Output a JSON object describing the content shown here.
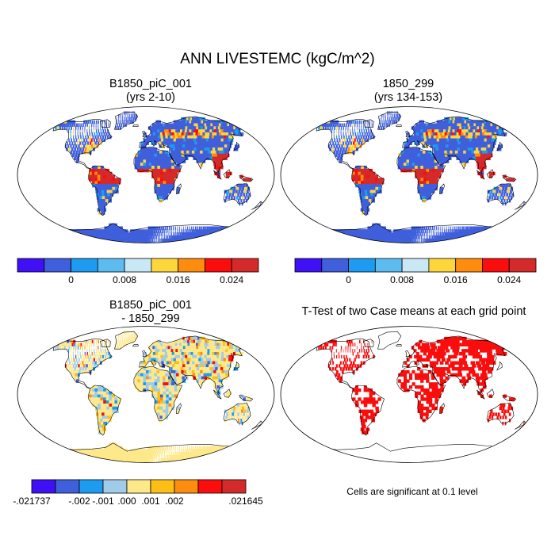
{
  "figure": {
    "title": "ANN LIVESTEMC (kgC/m^2)"
  },
  "panels": [
    {
      "id": "case1",
      "title_line1": "B1850_piC_001",
      "title_line2": "(yrs 2-10)",
      "kind": "field"
    },
    {
      "id": "case2",
      "title_line1": "1850_299",
      "title_line2": "(yrs 134-153)",
      "kind": "field"
    },
    {
      "id": "diff",
      "title_line1": "B1850_piC_001",
      "title_line2": "- 1850_299",
      "kind": "difference"
    },
    {
      "id": "ttest",
      "title_line1": "T-Test of two Case means at each grid point",
      "title_line2": "",
      "kind": "significance"
    }
  ],
  "colorbars": {
    "field": {
      "colors": [
        "#3f10f5",
        "#3f5fdc",
        "#1d9bf0",
        "#5cbcf0",
        "#c8e8f5",
        "#fdd63c",
        "#fd8c0f",
        "#fb0d0d",
        "#d42a2a"
      ],
      "tick_labels": [
        "0",
        "0.008",
        "0.016",
        "0.024"
      ],
      "tick_positions": [
        1,
        3,
        5,
        7
      ]
    },
    "difference": {
      "colors": [
        "#3f10f5",
        "#3f5fdc",
        "#1d9bf0",
        "#a0ccea",
        "#fde88a",
        "#fdbf14",
        "#fd8c0f",
        "#fb0d0d",
        "#d42a2a"
      ],
      "tick_labels": [
        "-.021737",
        "-.002",
        "-.001",
        ".000",
        ".001",
        ".002",
        ".021645"
      ],
      "tick_positions": [
        0,
        2,
        3,
        4,
        5,
        6,
        8
      ]
    }
  },
  "significance_note": "Cells are significant at 0.1 level",
  "colors": {
    "ocean": "#ffffff",
    "land_low": "#3f5fdc",
    "land_high": "#d42a2a",
    "diff_land": "#fde88a",
    "significant": "#fb0d0d",
    "coastline": "#000000"
  }
}
